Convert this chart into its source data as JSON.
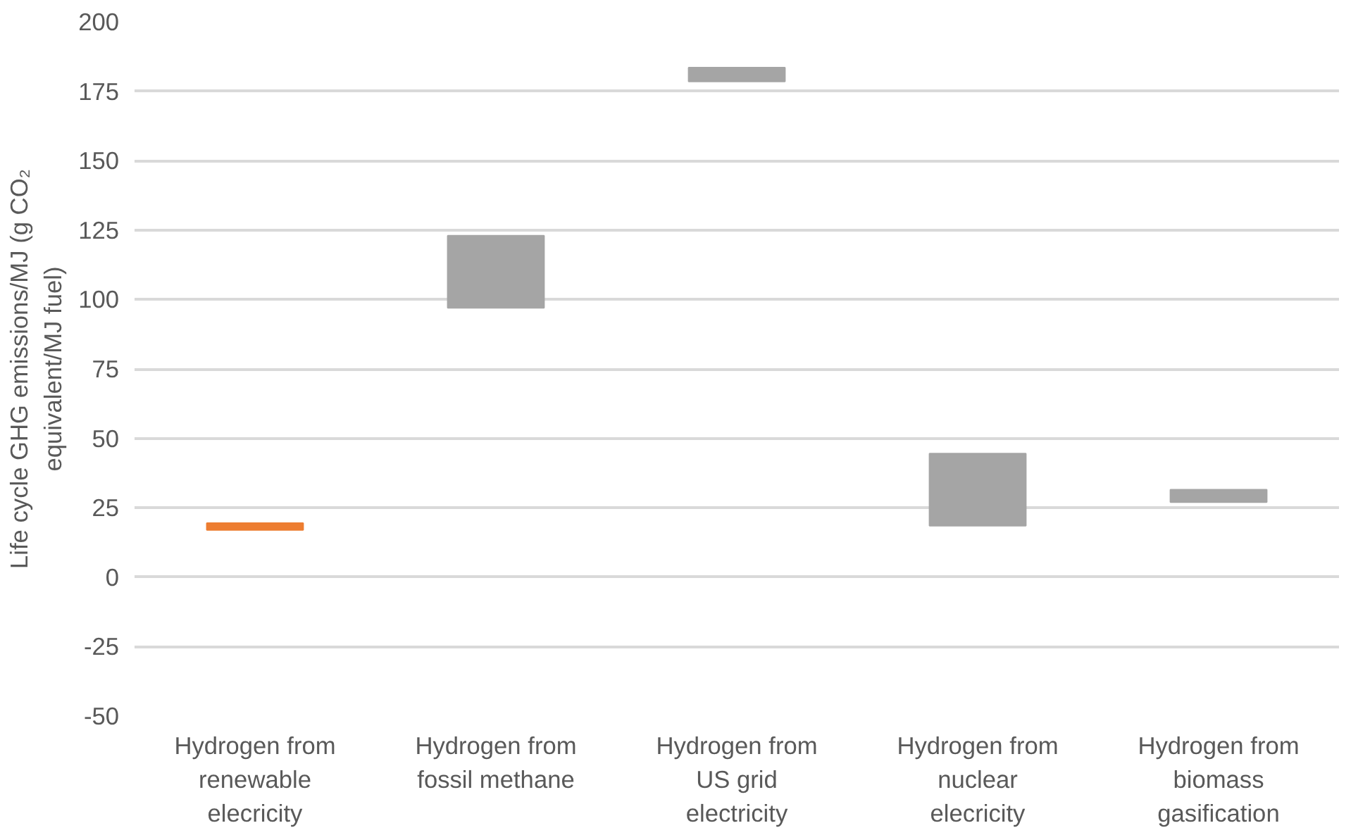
{
  "chart_data": {
    "type": "bar",
    "ylabel": "Life cycle GHG emissions/MJ (g CO₂ equivalent/MJ fuel)",
    "categories": [
      "Hydrogen from renewable elecricity",
      "Hydrogen from fossil methane",
      "Hydrogen from US grid electricity",
      "Hydrogen from nuclear elecricity",
      "Hydrogen from biomass gasification"
    ],
    "base": [
      17,
      97,
      178.5,
      18.5,
      27
    ],
    "values": [
      2.5,
      26,
      5,
      26,
      4.5
    ],
    "colors": [
      "#ed7d31",
      "#a5a5a5",
      "#a5a5a5",
      "#a5a5a5",
      "#a5a5a5"
    ],
    "ylim": [
      -50,
      200
    ],
    "yticks": [
      -50,
      -25,
      0,
      25,
      50,
      75,
      100,
      125,
      150,
      175,
      200
    ],
    "grid": "y"
  }
}
